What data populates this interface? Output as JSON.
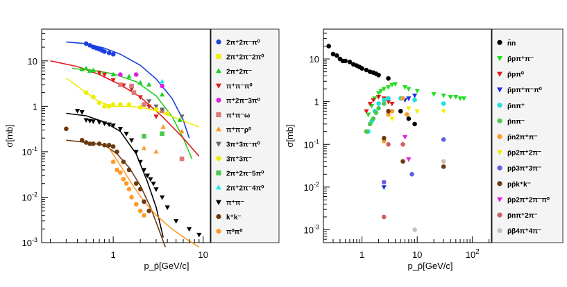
{
  "chart_data": [
    {
      "type": "scatter",
      "title": "",
      "xlabel": "p_p̄[GeV/c]",
      "ylabel": "σ[mb]",
      "xscale": "log",
      "yscale": "log",
      "xlim": [
        0.16,
        12
      ],
      "ylim": [
        0.001,
        50
      ],
      "xticks": [
        {
          "v": 1,
          "label": "1"
        },
        {
          "v": 10,
          "label": "10"
        }
      ],
      "yticks": [
        {
          "v": 0.001,
          "label": "10",
          "sup": "-3"
        },
        {
          "v": 0.01,
          "label": "10",
          "sup": "-2"
        },
        {
          "v": 0.1,
          "label": "10",
          "sup": "-1"
        },
        {
          "v": 1,
          "label": "1",
          "sup": ""
        },
        {
          "v": 10,
          "label": "10",
          "sup": ""
        }
      ],
      "legend_position": "right",
      "series": [
        {
          "name": "2π⁺2π⁻π⁰",
          "color": "#1a3fe0",
          "marker": "circle",
          "x": [
            0.5,
            0.55,
            0.6,
            0.65,
            0.7,
            0.75,
            0.8,
            0.9,
            1.0
          ],
          "y": [
            24,
            22,
            20,
            19,
            18,
            17,
            16,
            15,
            14
          ],
          "err": [],
          "fit": {
            "x": [
              0.3,
              0.5,
              0.8,
              1.2,
              2.0,
              3.0,
              4.5,
              6.0,
              7.0
            ],
            "y": [
              26,
              24,
              19,
              14,
              8,
              4,
              1.5,
              0.5,
              0.2
            ]
          }
        },
        {
          "name": "2π⁺2π⁻2π⁰",
          "color": "#f0f000",
          "marker": "square",
          "x": [],
          "y": [],
          "err": []
        },
        {
          "name": "2π⁺2π⁻",
          "color": "#22cc22",
          "marker": "triangle-up",
          "x": [
            0.45,
            0.5,
            0.55,
            0.6,
            0.7,
            1.0,
            1.5,
            2.0,
            2.5,
            3.5,
            5.5
          ],
          "y": [
            6.5,
            6.8,
            6.0,
            6.2,
            5.5,
            5.0,
            4.5,
            3.3,
            3.0,
            1.8,
            0.5
          ],
          "err": [],
          "fit": {
            "x": [
              0.35,
              0.6,
              1.0,
              1.8,
              3.0,
              4.5,
              6.0,
              7.5
            ],
            "y": [
              6.8,
              6.2,
              5.2,
              3.5,
              1.7,
              0.6,
              0.2,
              0.07
            ]
          }
        },
        {
          "name": "π⁺π⁻π⁰",
          "color": "#e01a1a",
          "marker": "triangle-down",
          "x": [
            0.7,
            0.8,
            1.0,
            1.3,
            1.6,
            2.0,
            2.5,
            3.0
          ],
          "y": [
            5.5,
            5.0,
            3.8,
            2.9,
            2.4,
            1.6,
            1.0,
            0.6
          ],
          "err": [],
          "fit": {
            "x": [
              0.2,
              0.4,
              0.7,
              1.2,
              2.0,
              3.5,
              6.0,
              9.0
            ],
            "y": [
              10,
              7.5,
              5.0,
              3.0,
              1.6,
              0.6,
              0.2,
              0.08
            ]
          }
        },
        {
          "name": "π⁺2π⁻3π⁰",
          "color": "#e020e0",
          "marker": "circle",
          "x": [
            1.2,
            1.8,
            3.5
          ],
          "y": [
            5.0,
            5.0,
            2.8
          ],
          "err": [],
          "fit": null
        },
        {
          "name": "π⁺π⁻ω",
          "color": "#d97a7a",
          "marker": "square",
          "x": [
            1.2,
            1.6,
            1.7,
            2.2,
            3.5,
            5.8
          ],
          "y": [
            3.0,
            2.8,
            2.0,
            1.1,
            0.8,
            0.07
          ],
          "err": [],
          "fit": null
        },
        {
          "name": "π⁺π⁻ρ⁰",
          "color": "#ff9a2a",
          "marker": "triangle-up",
          "x": [
            2.2,
            3.0,
            3.6,
            5.8
          ],
          "y": [
            0.12,
            0.1,
            0.35,
            0.28
          ],
          "err": [],
          "fit": null
        },
        {
          "name": "3π⁺3π⁻π⁰",
          "color": "#666666",
          "marker": "triangle-down",
          "x": [
            2.5,
            3.0,
            3.5,
            5.8
          ],
          "y": [
            1.3,
            1.0,
            0.85,
            0.6
          ],
          "err": [],
          "fit": null
        },
        {
          "name": "3π⁺3π⁻",
          "color": "#eeee00",
          "marker": "circle",
          "x": [
            0.5,
            0.6,
            0.7,
            0.8,
            0.9,
            1.0,
            1.2,
            1.5,
            2.0,
            3.0,
            4.0
          ],
          "y": [
            2.0,
            1.6,
            1.2,
            1.0,
            1.0,
            1.1,
            1.1,
            1.1,
            0.95,
            0.85,
            0.7
          ],
          "err": [],
          "fit": {
            "x": [
              0.3,
              0.5,
              0.7,
              1.0,
              1.5,
              2.0,
              3.0,
              5.0,
              9.0
            ],
            "y": [
              4.2,
              2.0,
              1.25,
              1.0,
              1.0,
              0.95,
              0.8,
              0.55,
              0.35
            ]
          }
        },
        {
          "name": "2π⁺2π⁻5π⁰",
          "color": "#4cc84c",
          "marker": "square",
          "x": [
            2.2,
            3.5
          ],
          "y": [
            0.22,
            0.25
          ],
          "err": [],
          "fit": null
        },
        {
          "name": "2π⁺2π⁻4π⁰",
          "color": "#22e8e8",
          "marker": "triangle-up",
          "x": [
            3.5
          ],
          "y": [
            3.5
          ],
          "err": [],
          "fit": null
        },
        {
          "name": "π⁺π⁻",
          "color": "#000000",
          "marker": "triangle-down",
          "x": [
            0.4,
            0.45,
            0.5,
            0.55,
            0.6,
            0.7,
            0.8,
            0.9,
            1.0,
            1.2,
            1.4,
            1.6,
            1.8,
            2.0,
            2.2,
            2.4,
            2.6,
            2.8,
            3.0,
            3.5,
            4.0,
            5.0,
            7.0,
            9.0
          ],
          "y": [
            0.8,
            0.75,
            0.5,
            0.48,
            0.47,
            0.45,
            0.42,
            0.4,
            0.38,
            0.32,
            0.25,
            0.18,
            0.1,
            0.06,
            0.04,
            0.03,
            0.025,
            0.02,
            0.015,
            0.01,
            0.006,
            0.003,
            0.002,
            0.0015
          ],
          "err": [],
          "fit": {
            "x": [
              0.3,
              0.5,
              0.8,
              1.2,
              1.8,
              2.4,
              3.0,
              3.6
            ],
            "y": [
              0.7,
              0.62,
              0.45,
              0.28,
              0.09,
              0.022,
              0.006,
              0.0013
            ]
          }
        },
        {
          "name": "k⁺k⁻",
          "color": "#6b3a10",
          "marker": "circle",
          "x": [
            0.3,
            0.45,
            0.5,
            0.55,
            0.6,
            0.7,
            0.8,
            0.9,
            1.0,
            1.1,
            1.3,
            1.5,
            1.8,
            2.0,
            2.2,
            2.5
          ],
          "y": [
            0.32,
            0.18,
            0.16,
            0.15,
            0.15,
            0.15,
            0.14,
            0.14,
            0.13,
            0.1,
            0.06,
            0.04,
            0.02,
            0.015,
            0.008,
            0.005
          ],
          "err": [],
          "fit": {
            "x": [
              0.3,
              0.5,
              0.8,
              1.1,
              1.5,
              2.0,
              2.6,
              3.2,
              3.8
            ],
            "y": [
              0.18,
              0.16,
              0.14,
              0.09,
              0.045,
              0.018,
              0.006,
              0.002,
              0.0008
            ]
          }
        },
        {
          "name": "π⁰π⁰",
          "color": "#ff9a2a",
          "marker": "circle",
          "x": [
            1.0,
            1.1,
            1.2,
            1.3,
            1.4,
            1.5,
            1.6,
            1.8,
            2.0,
            2.2
          ],
          "y": [
            0.06,
            0.04,
            0.035,
            0.025,
            0.02,
            0.015,
            0.01,
            0.007,
            0.005,
            0.004
          ],
          "err": [],
          "fit": {
            "x": [
              0.9,
              1.2,
              1.6,
              2.2,
              3.0,
              4.5,
              6.5,
              9.0
            ],
            "y": [
              0.12,
              0.05,
              0.02,
              0.008,
              0.004,
              0.002,
              0.0012,
              0.0008
            ]
          }
        }
      ]
    },
    {
      "type": "scatter",
      "title": "",
      "xlabel": "p_p̄[GeV/c]",
      "ylabel": "σ[mb]",
      "xscale": "log",
      "yscale": "log",
      "xlim": [
        0.2,
        220
      ],
      "ylim": [
        0.0005,
        50
      ],
      "xticks": [
        {
          "v": 1,
          "label": "1"
        },
        {
          "v": 10,
          "label": "10"
        },
        {
          "v": 100,
          "label": "10",
          "sup": "2"
        }
      ],
      "yticks": [
        {
          "v": 0.001,
          "label": "10",
          "sup": "-3"
        },
        {
          "v": 0.01,
          "label": "10",
          "sup": "-2"
        },
        {
          "v": 0.1,
          "label": "10",
          "sup": "-1"
        },
        {
          "v": 1,
          "label": "1",
          "sup": ""
        },
        {
          "v": 10,
          "label": "10",
          "sup": ""
        }
      ],
      "legend_position": "right",
      "series": [
        {
          "name": "n̄n",
          "color": "#000000",
          "marker": "circle",
          "x": [
            0.25,
            0.3,
            0.35,
            0.4,
            0.45,
            0.5,
            0.6,
            0.7,
            0.8,
            0.9,
            1.0,
            1.2,
            1.4,
            1.6,
            1.8,
            2.0,
            3.0,
            5.0,
            7.0,
            9.0
          ],
          "y": [
            20,
            13,
            12,
            10,
            9,
            9,
            8.5,
            7.5,
            7,
            6.5,
            6,
            5.5,
            5,
            4.8,
            4.5,
            4.2,
            3.5,
            0.6,
            0.4,
            0.3
          ],
          "err": []
        },
        {
          "name": "p̄pπ⁺π⁻",
          "color": "#22dd22",
          "marker": "triangle-down",
          "x": [
            1.3,
            1.5,
            1.7,
            2.0,
            2.2,
            2.5,
            3.0,
            3.5,
            4.0,
            6.0,
            7.0,
            10.0,
            20.0,
            30.0,
            40.0,
            50.0,
            60.0,
            70.0
          ],
          "y": [
            0.5,
            0.8,
            1.2,
            1.6,
            1.8,
            2.0,
            2.2,
            2.5,
            2.6,
            2.2,
            2.0,
            1.8,
            1.5,
            1.4,
            1.3,
            1.3,
            1.2,
            1.2
          ],
          "err": []
        },
        {
          "name": "p̄pπ⁰",
          "color": "#e01a1a",
          "marker": "triangle-down",
          "x": [
            1.2,
            1.4,
            1.6,
            2.0,
            2.5,
            3.0,
            3.5
          ],
          "y": [
            0.6,
            0.9,
            1.1,
            1.3,
            1.2,
            1.0,
            0.9
          ],
          "err": []
        },
        {
          "name": "p̄pπ⁺π⁻π⁰",
          "color": "#1a2ee0",
          "marker": "triangle-down",
          "x": [
            2.5,
            6.0,
            7.0,
            9.0
          ],
          "y": [
            0.01,
            1.1,
            1.2,
            1.4
          ],
          "err": []
        },
        {
          "name": "p̄nπ⁺",
          "color": "#22dddd",
          "marker": "circle",
          "x": [
            1.3,
            1.5,
            1.7,
            2.0,
            2.5,
            3.0,
            5.0,
            9.0,
            30.0
          ],
          "y": [
            0.2,
            0.35,
            0.6,
            0.9,
            1.1,
            1.2,
            1.2,
            1.1,
            0.9
          ],
          "err": []
        },
        {
          "name": "p̄nπ⁻",
          "color": "#4cc84c",
          "marker": "circle",
          "x": [
            1.2,
            1.4,
            1.6,
            1.8,
            2.0,
            2.5
          ],
          "y": [
            0.2,
            0.3,
            0.4,
            0.55,
            0.7,
            0.9
          ],
          "err": []
        },
        {
          "name": "p̄n2π⁺π⁻",
          "color": "#ff9a2a",
          "marker": "circle",
          "x": [
            2.5,
            3.0,
            3.5,
            5.5,
            6.5
          ],
          "y": [
            0.12,
            0.5,
            0.6,
            1.2,
            0.5
          ],
          "err": []
        },
        {
          "name": "p̄p2π⁺2π⁻",
          "color": "#eeee00",
          "marker": "triangle-down",
          "x": [
            3.5,
            7.0,
            10.0,
            30.0
          ],
          "y": [
            0.4,
            0.7,
            0.6,
            0.6
          ],
          "err": []
        },
        {
          "name": "pp̄3π⁺3π⁻",
          "color": "#6060e0",
          "marker": "circle",
          "x": [
            2.5,
            8.0,
            30.0
          ],
          "y": [
            0.013,
            0.02,
            0.13
          ],
          "err": []
        },
        {
          "name": "pp̄k⁺k⁻",
          "color": "#6b3a10",
          "marker": "circle",
          "x": [
            2.5,
            3.0,
            5.5,
            30.0
          ],
          "y": [
            0.14,
            0.6,
            0.04,
            0.03
          ],
          "err": []
        },
        {
          "name": "p̄p2π⁺2π⁻π⁰",
          "color": "#e020e0",
          "marker": "triangle-down",
          "x": [
            6.0,
            7.0
          ],
          "y": [
            0.15,
            0.045
          ],
          "err": []
        },
        {
          "name": "p̄nπ⁺2π⁻",
          "color": "#d06060",
          "marker": "circle",
          "x": [
            2.5,
            3.0,
            5.5
          ],
          "y": [
            0.002,
            0.1,
            0.1
          ],
          "err": []
        },
        {
          "name": "p̄β4π⁺4π⁻",
          "color": "#c8c0b8",
          "marker": "circle",
          "x": [
            9.0,
            30.0
          ],
          "y": [
            0.001,
            0.04
          ],
          "err": []
        }
      ]
    }
  ]
}
